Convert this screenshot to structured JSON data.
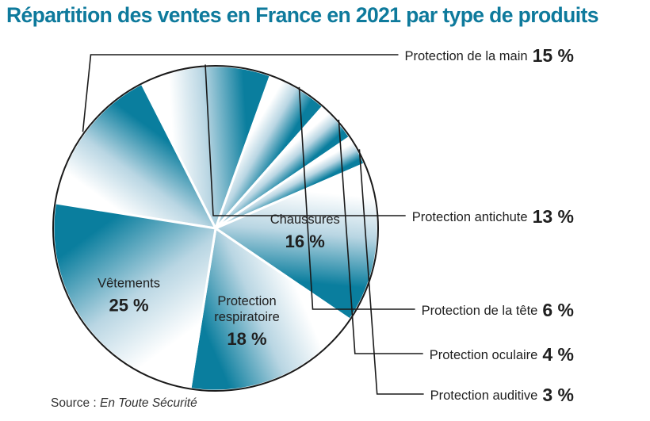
{
  "title": "Répartition des ventes en France en 2021 par type de produits",
  "source": {
    "prefix": "Source :",
    "name": "En Toute Sécurité"
  },
  "colors": {
    "title": "#0e7a9c",
    "slice_dark": "#0a7e9e",
    "slice_light": "#ffffff",
    "outline": "#1a1a1a"
  },
  "chart_data": {
    "type": "pie",
    "title": "Répartition des ventes en France en 2021 par type de produits",
    "unit": "%",
    "slices": [
      {
        "label": "Protection de la main",
        "value": 15,
        "value_label": "15 %"
      },
      {
        "label": "Protection antichute",
        "value": 13,
        "value_label": "13 %"
      },
      {
        "label": "Protection de la tête",
        "value": 6,
        "value_label": "6 %"
      },
      {
        "label": "Protection oculaire",
        "value": 4,
        "value_label": "4 %"
      },
      {
        "label": "Protection auditive",
        "value": 3,
        "value_label": "3 %"
      },
      {
        "label": "Chaussures",
        "value": 16,
        "value_label": "16 %"
      },
      {
        "label": "Protection respiratoire",
        "value": 18,
        "value_label": "18 %"
      },
      {
        "label": "Vêtements",
        "value": 25,
        "value_label": "25 %"
      }
    ],
    "inside_labels": [
      {
        "lines": [
          "Vêtements"
        ],
        "value_label": "25 %"
      },
      {
        "lines": [
          "Protection",
          "respiratoire"
        ],
        "value_label": "18 %"
      },
      {
        "lines": [
          "Chaussures"
        ],
        "value_label": "16 %"
      }
    ]
  }
}
